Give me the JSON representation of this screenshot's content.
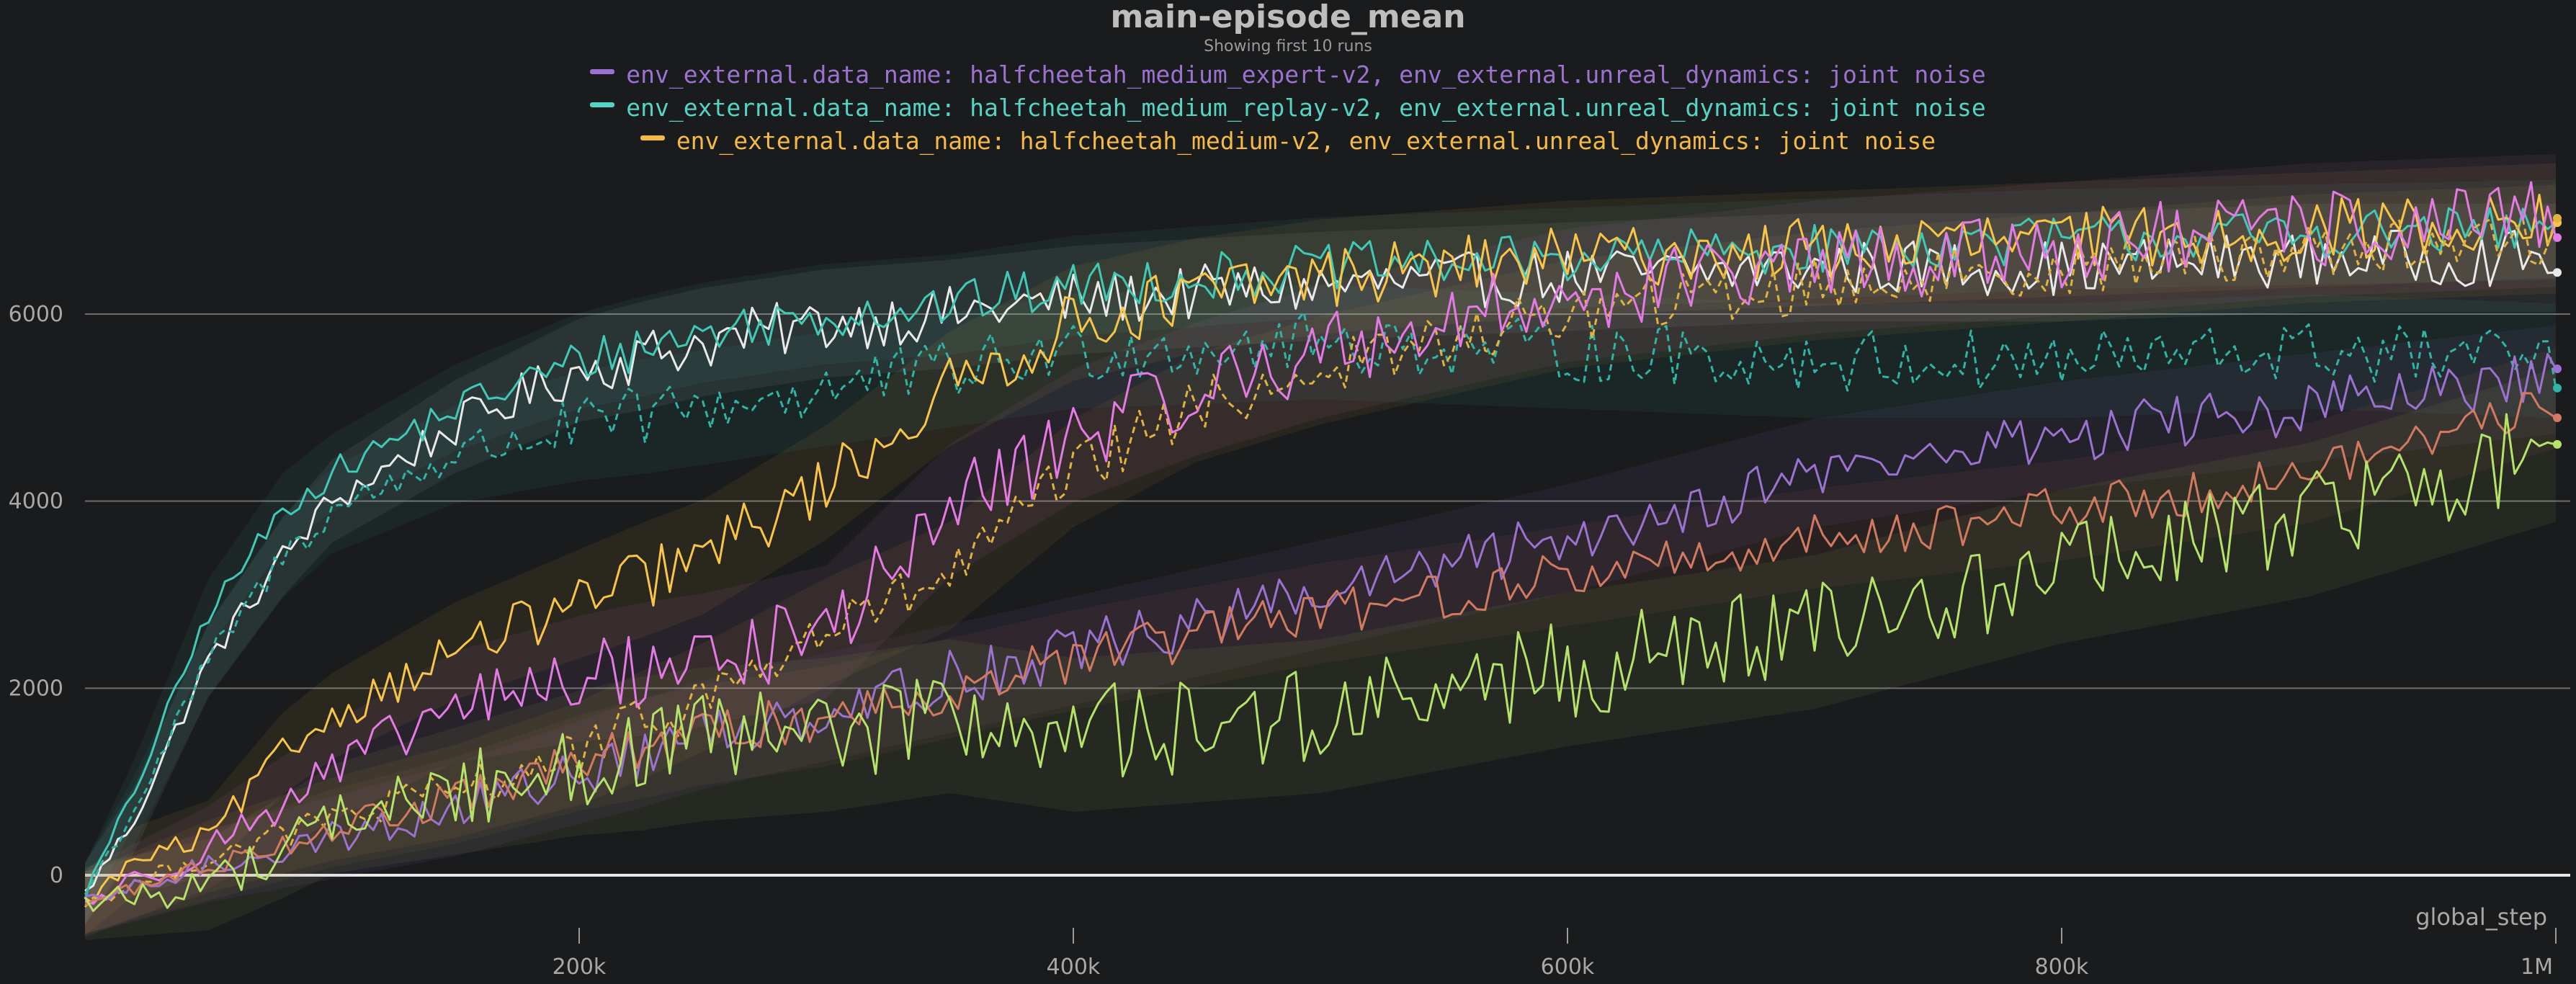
{
  "chart_data": {
    "type": "line",
    "title": "main-episode_mean",
    "subtitle": "Showing first 10 runs",
    "xlabel": "global_step",
    "ylabel": "",
    "xlim": [
      0,
      1000000
    ],
    "ylim": [
      -400,
      7500
    ],
    "x_ticks": [
      {
        "value": 200000,
        "label": "200k"
      },
      {
        "value": 400000,
        "label": "400k"
      },
      {
        "value": 600000,
        "label": "600k"
      },
      {
        "value": 800000,
        "label": "800k"
      },
      {
        "value": 1000000,
        "label": "1M"
      }
    ],
    "y_ticks": [
      {
        "value": 0,
        "label": "0"
      },
      {
        "value": 2000,
        "label": "2000"
      },
      {
        "value": 4000,
        "label": "4000"
      },
      {
        "value": 6000,
        "label": "6000"
      }
    ],
    "grid": "horizontal",
    "legend_position": "top-center",
    "legend": [
      {
        "text": "env_external.data_name: halfcheetah_medium_expert-v2, env_external.unreal_dynamics: joint noise",
        "color": "#9b72cf"
      },
      {
        "text": "env_external.data_name: halfcheetah_medium_replay-v2, env_external.unreal_dynamics: joint noise",
        "color": "#55d3c4"
      },
      {
        "text": "env_external.data_name: halfcheetah_medium-v2, env_external.unreal_dynamics: joint noise",
        "color": "#f5b945"
      }
    ],
    "series": [
      {
        "color": "#e9e9e9",
        "dash": false,
        "noise": 300,
        "x": [
          0,
          20000,
          50000,
          80000,
          100000,
          150000,
          200000,
          250000,
          300000,
          350000,
          400000,
          500000,
          600000,
          700000,
          800000,
          900000,
          1000000
        ],
        "y": [
          -200,
          600,
          2300,
          3400,
          4000,
          4800,
          5400,
          5700,
          5900,
          6000,
          6150,
          6300,
          6400,
          6500,
          6500,
          6600,
          6600
        ]
      },
      {
        "color": "#40c9b5",
        "dash": false,
        "noise": 260,
        "x": [
          0,
          20000,
          50000,
          80000,
          100000,
          150000,
          200000,
          250000,
          300000,
          350000,
          400000,
          500000,
          600000,
          700000,
          800000,
          900000,
          1000000
        ],
        "y": [
          -200,
          900,
          2800,
          3900,
          4300,
          5000,
          5500,
          5800,
          6000,
          6100,
          6300,
          6500,
          6600,
          6700,
          6800,
          6850,
          6900
        ]
      },
      {
        "color": "#2fb4a6",
        "dash": true,
        "noise": 330,
        "x": [
          0,
          20000,
          50000,
          80000,
          100000,
          150000,
          200000,
          250000,
          300000,
          350000,
          400000,
          500000,
          600000,
          700000,
          800000,
          900000,
          1000000
        ],
        "y": [
          -200,
          700,
          2300,
          3400,
          3900,
          4500,
          4800,
          5000,
          5200,
          5400,
          5600,
          5700,
          5600,
          5500,
          5500,
          5600,
          5500
        ]
      },
      {
        "color": "#f8c549",
        "dash": false,
        "noise": 330,
        "x": [
          0,
          20000,
          50000,
          80000,
          100000,
          150000,
          200000,
          250000,
          300000,
          350000,
          400000,
          450000,
          500000,
          600000,
          700000,
          800000,
          900000,
          1000000
        ],
        "y": [
          -300,
          150,
          400,
          1300,
          1700,
          2400,
          2900,
          3400,
          4200,
          5200,
          5900,
          6200,
          6400,
          6600,
          6700,
          6800,
          6900,
          7000
        ]
      },
      {
        "color": "#e0b23e",
        "dash": true,
        "noise": 300,
        "x": [
          0,
          50000,
          100000,
          150000,
          200000,
          250000,
          300000,
          350000,
          400000,
          450000,
          500000,
          600000,
          700000,
          800000,
          900000,
          1000000
        ],
        "y": [
          -300,
          200,
          600,
          900,
          1300,
          1900,
          2600,
          3200,
          4300,
          5000,
          5400,
          6000,
          6300,
          6500,
          6700,
          6800
        ]
      },
      {
        "color": "#e47ae4",
        "dash": false,
        "noise": 420,
        "x": [
          0,
          50000,
          100000,
          150000,
          200000,
          250000,
          300000,
          350000,
          400000,
          450000,
          500000,
          600000,
          700000,
          800000,
          900000,
          1000000
        ],
        "y": [
          -300,
          300,
          1100,
          1800,
          2100,
          2300,
          2600,
          3900,
          4700,
          5200,
          5600,
          6200,
          6500,
          6700,
          6900,
          7000
        ]
      },
      {
        "color": "#9b72cf",
        "dash": false,
        "noise": 300,
        "x": [
          0,
          50000,
          100000,
          150000,
          200000,
          250000,
          300000,
          350000,
          400000,
          500000,
          600000,
          700000,
          800000,
          900000,
          1000000
        ],
        "y": [
          -300,
          100,
          400,
          700,
          1100,
          1500,
          1800,
          2100,
          2400,
          3000,
          3600,
          4300,
          4700,
          5000,
          5300
        ]
      },
      {
        "color": "#d17a60",
        "dash": false,
        "noise": 260,
        "x": [
          0,
          50000,
          100000,
          150000,
          200000,
          250000,
          300000,
          350000,
          400000,
          500000,
          600000,
          700000,
          800000,
          900000,
          1000000
        ],
        "y": [
          -300,
          100,
          500,
          800,
          1200,
          1500,
          1700,
          2000,
          2300,
          2800,
          3200,
          3600,
          3900,
          4300,
          5100
        ]
      },
      {
        "color": "#b5e36a",
        "dash": false,
        "noise": 520,
        "x": [
          0,
          50000,
          80000,
          100000,
          150000,
          200000,
          250000,
          300000,
          350000,
          400000,
          500000,
          600000,
          700000,
          800000,
          900000,
          1000000
        ],
        "y": [
          -300,
          -100,
          300,
          600,
          900,
          1200,
          1400,
          1500,
          1700,
          1500,
          1700,
          2200,
          2600,
          3300,
          3800,
          4600
        ]
      }
    ]
  }
}
